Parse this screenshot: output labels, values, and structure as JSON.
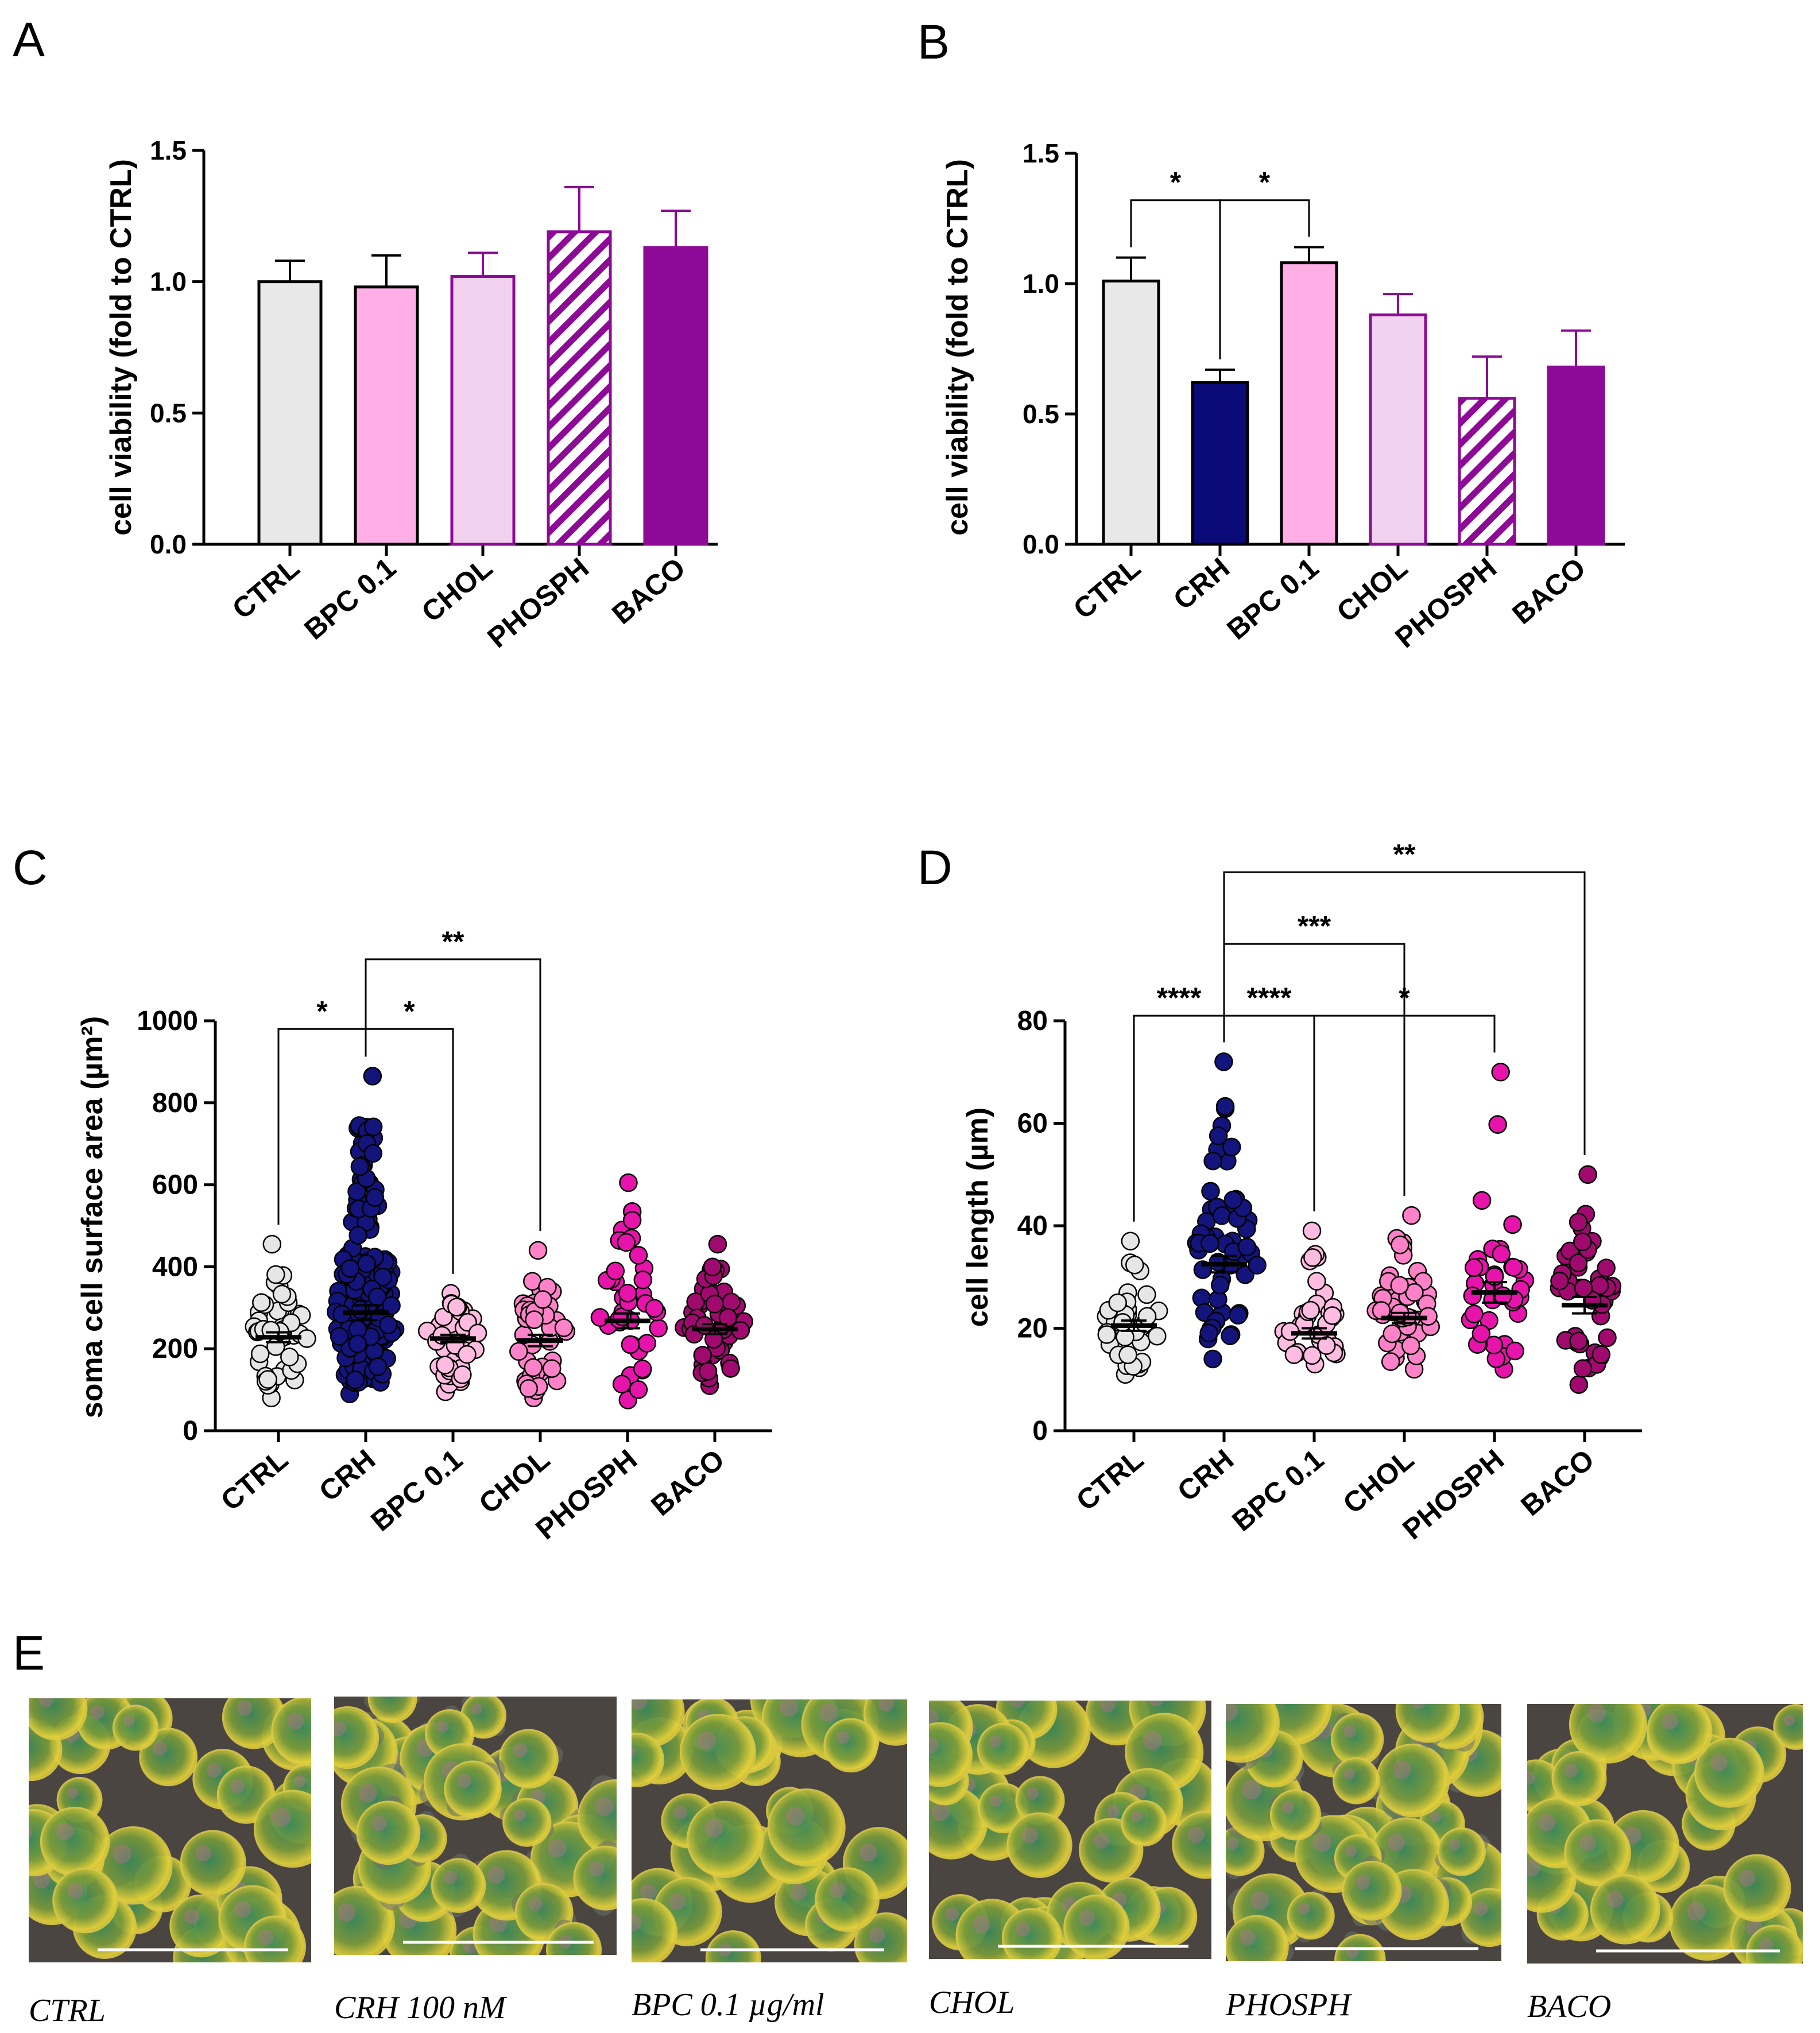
{
  "figure": {
    "panel_letters": [
      "A",
      "B",
      "C",
      "D",
      "E"
    ]
  },
  "chart_data": [
    {
      "panel": "A",
      "type": "bar",
      "ylabel": "cell viability (fold to CTRL)",
      "ylim": [
        0,
        1.5
      ],
      "yticks": [
        0.0,
        0.5,
        1.0,
        1.5
      ],
      "ytick_labels": [
        "0.0",
        "0.5",
        "1.0",
        "1.5"
      ],
      "categories": [
        "CTRL",
        "BPC 0.1",
        "CHOL",
        "PHOSPH",
        "BACO"
      ],
      "values": [
        1.0,
        0.98,
        1.02,
        1.19,
        1.13
      ],
      "errors": [
        0.08,
        0.12,
        0.09,
        0.17,
        0.14
      ],
      "fills": [
        "#e8e8e8",
        "#ffaee6",
        "#f0d2ee",
        "#ffffff",
        "#8c0a96"
      ],
      "edges": [
        "#000000",
        "#000000",
        "#8c0a96",
        "#8c0a96",
        "#8c0a96"
      ],
      "hatch": [
        false,
        false,
        false,
        true,
        false
      ],
      "significance": []
    },
    {
      "panel": "B",
      "type": "bar",
      "ylabel": "cell viability (fold to CTRL)",
      "ylim": [
        0,
        1.5
      ],
      "yticks": [
        0.0,
        0.5,
        1.0,
        1.5
      ],
      "ytick_labels": [
        "0.0",
        "0.5",
        "1.0",
        "1.5"
      ],
      "categories": [
        "CTRL",
        "CRH",
        "BPC 0.1",
        "CHOL",
        "PHOSPH",
        "BACO"
      ],
      "values": [
        1.01,
        0.62,
        1.08,
        0.88,
        0.56,
        0.68
      ],
      "errors": [
        0.09,
        0.05,
        0.06,
        0.08,
        0.16,
        0.14
      ],
      "fills": [
        "#e8e8e8",
        "#0a0a78",
        "#ffaee6",
        "#f0d2ee",
        "#ffffff",
        "#8c0a96"
      ],
      "edges": [
        "#000000",
        "#000000",
        "#000000",
        "#8c0a96",
        "#8c0a96",
        "#8c0a96"
      ],
      "hatch": [
        false,
        false,
        false,
        false,
        true,
        false
      ],
      "significance": [
        {
          "from": 0,
          "to": 1,
          "y": 1.32,
          "label": "*"
        },
        {
          "from": 1,
          "to": 2,
          "y": 1.32,
          "label": "*"
        }
      ]
    },
    {
      "panel": "C",
      "type": "scatter",
      "ylabel": "soma cell surface area (µm²)",
      "ylim": [
        0,
        1000
      ],
      "yticks": [
        0,
        200,
        400,
        600,
        800,
        1000
      ],
      "ytick_labels": [
        "0",
        "200",
        "400",
        "600",
        "800",
        "1000"
      ],
      "categories": [
        "CTRL",
        "CRH",
        "BPC 0.1",
        "CHOL",
        "PHOSPH",
        "BACO"
      ],
      "means": [
        228,
        288,
        225,
        220,
        268,
        248
      ],
      "sems": [
        12,
        18,
        9,
        14,
        18,
        12
      ],
      "ranges": [
        [
          80,
          455
        ],
        [
          90,
          865
        ],
        [
          95,
          335
        ],
        [
          80,
          440
        ],
        [
          75,
          605
        ],
        [
          110,
          455
        ]
      ],
      "counts": [
        45,
        160,
        45,
        45,
        40,
        55
      ],
      "fills": [
        "#e6e6e6",
        "#14147d",
        "#ffbbe0",
        "#ff82c8",
        "#e614aa",
        "#a00a6e"
      ],
      "significance": [
        {
          "from": 0,
          "to": 1,
          "y": 980,
          "label": "*"
        },
        {
          "from": 1,
          "to": 2,
          "y": 980,
          "label": "*"
        },
        {
          "from": 1,
          "to": 3,
          "y": 1150,
          "label": "**"
        }
      ]
    },
    {
      "panel": "D",
      "type": "scatter",
      "ylabel": "cell length (µm)",
      "ylim": [
        0,
        80
      ],
      "yticks": [
        0,
        20,
        40,
        60,
        80
      ],
      "ytick_labels": [
        "0",
        "20",
        "40",
        "60",
        "80"
      ],
      "categories": [
        "CTRL",
        "CRH",
        "BPC 0.1",
        "CHOL",
        "PHOSPH",
        "BACO"
      ],
      "means": [
        20.5,
        32.5,
        19.0,
        22.0,
        27.0,
        24.5
      ],
      "sems": [
        1.0,
        1.6,
        1.0,
        1.0,
        2.0,
        1.6
      ],
      "ranges": [
        [
          11,
          37
        ],
        [
          14,
          72
        ],
        [
          13,
          39
        ],
        [
          12,
          42
        ],
        [
          12,
          70
        ],
        [
          9,
          50
        ]
      ],
      "counts": [
        40,
        55,
        35,
        50,
        40,
        45
      ],
      "fills": [
        "#e6e6e6",
        "#14147d",
        "#ffbbe0",
        "#ff82c8",
        "#e614aa",
        "#a00a6e"
      ],
      "significance": [
        {
          "from": 0,
          "to": 1,
          "y": 81,
          "label": "****"
        },
        {
          "from": 1,
          "to": 2,
          "y": 81,
          "label": "****"
        },
        {
          "from": 2,
          "to": 4,
          "y": 81,
          "label": "*"
        },
        {
          "from": 1,
          "to": 3,
          "y": 95,
          "label": "***"
        },
        {
          "from": 1,
          "to": 5,
          "y": 109,
          "label": "**"
        }
      ]
    }
  ],
  "micrographs": [
    {
      "caption": "CTRL"
    },
    {
      "caption": "CRH 100 nM"
    },
    {
      "caption": "BPC 0.1  µg/ml"
    },
    {
      "caption": "CHOL"
    },
    {
      "caption": "PHOSPH"
    },
    {
      "caption": "BACO"
    }
  ]
}
